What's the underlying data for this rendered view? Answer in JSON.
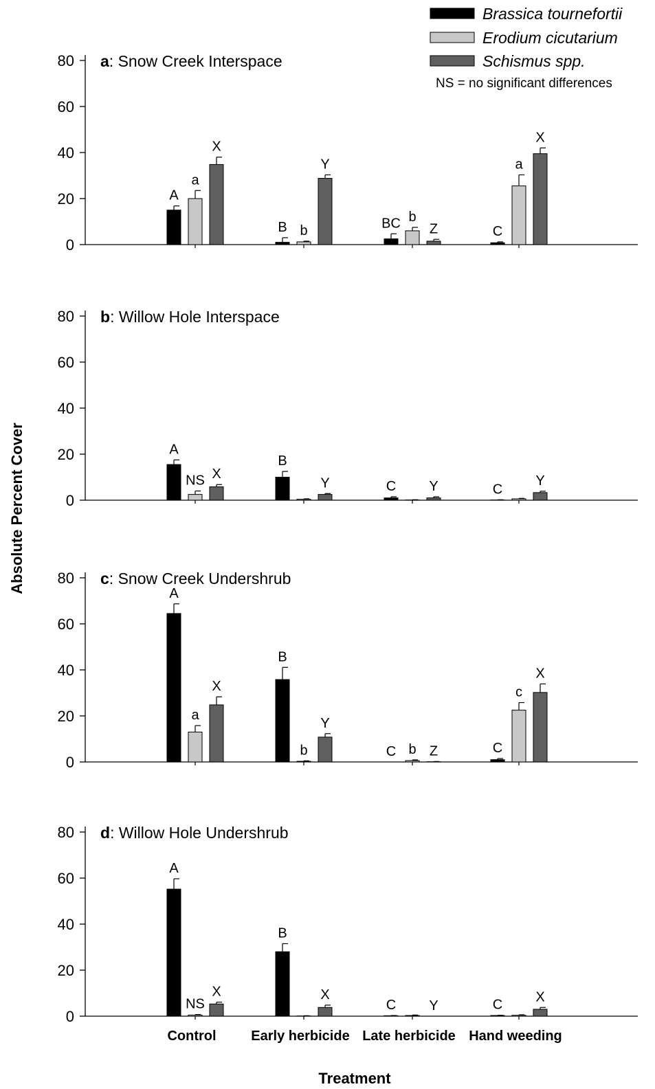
{
  "chart_data": {
    "type": "bar",
    "xlabel": "Treatment",
    "ylabel": "Absolute Percent Cover",
    "categories": [
      "Control",
      "Early herbicide",
      "Late herbicide",
      "Hand weeding"
    ],
    "ylim": [
      0,
      80
    ],
    "yticks": [
      0,
      20,
      40,
      60,
      80
    ],
    "legend": {
      "placement": "top-right",
      "series": [
        {
          "name": "Brassica tournefortii",
          "color": "#000000"
        },
        {
          "name": "Erodium cicutarium",
          "color": "#c8c8c8"
        },
        {
          "name": "Schismus spp.",
          "color": "#5f5f5f"
        }
      ],
      "note": "NS = no significant differences"
    },
    "panels": [
      {
        "letter": "a",
        "title": ": Snow Creek Interspace",
        "values": [
          [
            15,
            1,
            2.5,
            0.8
          ],
          [
            20,
            1.2,
            6,
            25.5
          ],
          [
            34.8,
            28.8,
            1.5,
            39.5
          ]
        ],
        "errors": [
          [
            1.8,
            2,
            2.2,
            0.4
          ],
          [
            3.5,
            0.3,
            1.5,
            4.8
          ],
          [
            3.2,
            1.5,
            0.8,
            2.5
          ]
        ],
        "letters": [
          [
            "A",
            "a",
            "X"
          ],
          [
            "B",
            "b",
            "Y"
          ],
          [
            "BC",
            "b",
            "Z"
          ],
          [
            "C",
            "a",
            "X"
          ]
        ]
      },
      {
        "letter": "b",
        "title": ": Willow Hole Interspace",
        "values": [
          [
            15.5,
            10,
            1,
            0.1
          ],
          [
            2.5,
            0.4,
            0.1,
            0.6
          ],
          [
            5.8,
            2.5,
            1,
            3.3
          ]
        ],
        "errors": [
          [
            2,
            2.5,
            0.5,
            0.1
          ],
          [
            1.5,
            0.2,
            0.1,
            0.2
          ],
          [
            1,
            0.4,
            0.5,
            0.6
          ]
        ],
        "letters": [
          [
            "A",
            "NS",
            "X"
          ],
          [
            "B",
            "",
            "Y"
          ],
          [
            "C",
            "",
            "Y"
          ],
          [
            "C",
            "",
            "Y"
          ]
        ]
      },
      {
        "letter": "c",
        "title": ": Snow Creek Undershrub",
        "values": [
          [
            64.5,
            35.8,
            0,
            1
          ],
          [
            13,
            0.3,
            0.6,
            22.5
          ],
          [
            24.8,
            10.8,
            0.1,
            30.2
          ]
        ],
        "errors": [
          [
            4.2,
            5.3,
            0,
            0.5
          ],
          [
            2.8,
            0.2,
            0.3,
            3.3
          ],
          [
            3.5,
            1.5,
            0.1,
            3.7
          ]
        ],
        "letters": [
          [
            "A",
            "a",
            "X"
          ],
          [
            "B",
            "b",
            "Y"
          ],
          [
            "C",
            "b",
            "Z"
          ],
          [
            "C",
            "c",
            "X"
          ]
        ]
      },
      {
        "letter": "d",
        "title": ": Willow Hole Undershrub",
        "values": [
          [
            55.2,
            28,
            0.2,
            0.3
          ],
          [
            0.5,
            0.1,
            0.3,
            0.4
          ],
          [
            5.3,
            3.8,
            0,
            3
          ]
        ],
        "errors": [
          [
            4.5,
            3.5,
            0.1,
            0.1
          ],
          [
            0.2,
            0.1,
            0.2,
            0.2
          ],
          [
            0.8,
            1,
            0,
            0.8
          ]
        ],
        "letters": [
          [
            "A",
            "NS",
            "X"
          ],
          [
            "B",
            "",
            "X"
          ],
          [
            "C",
            "",
            "Y"
          ],
          [
            "C",
            "",
            "X"
          ]
        ]
      }
    ]
  }
}
